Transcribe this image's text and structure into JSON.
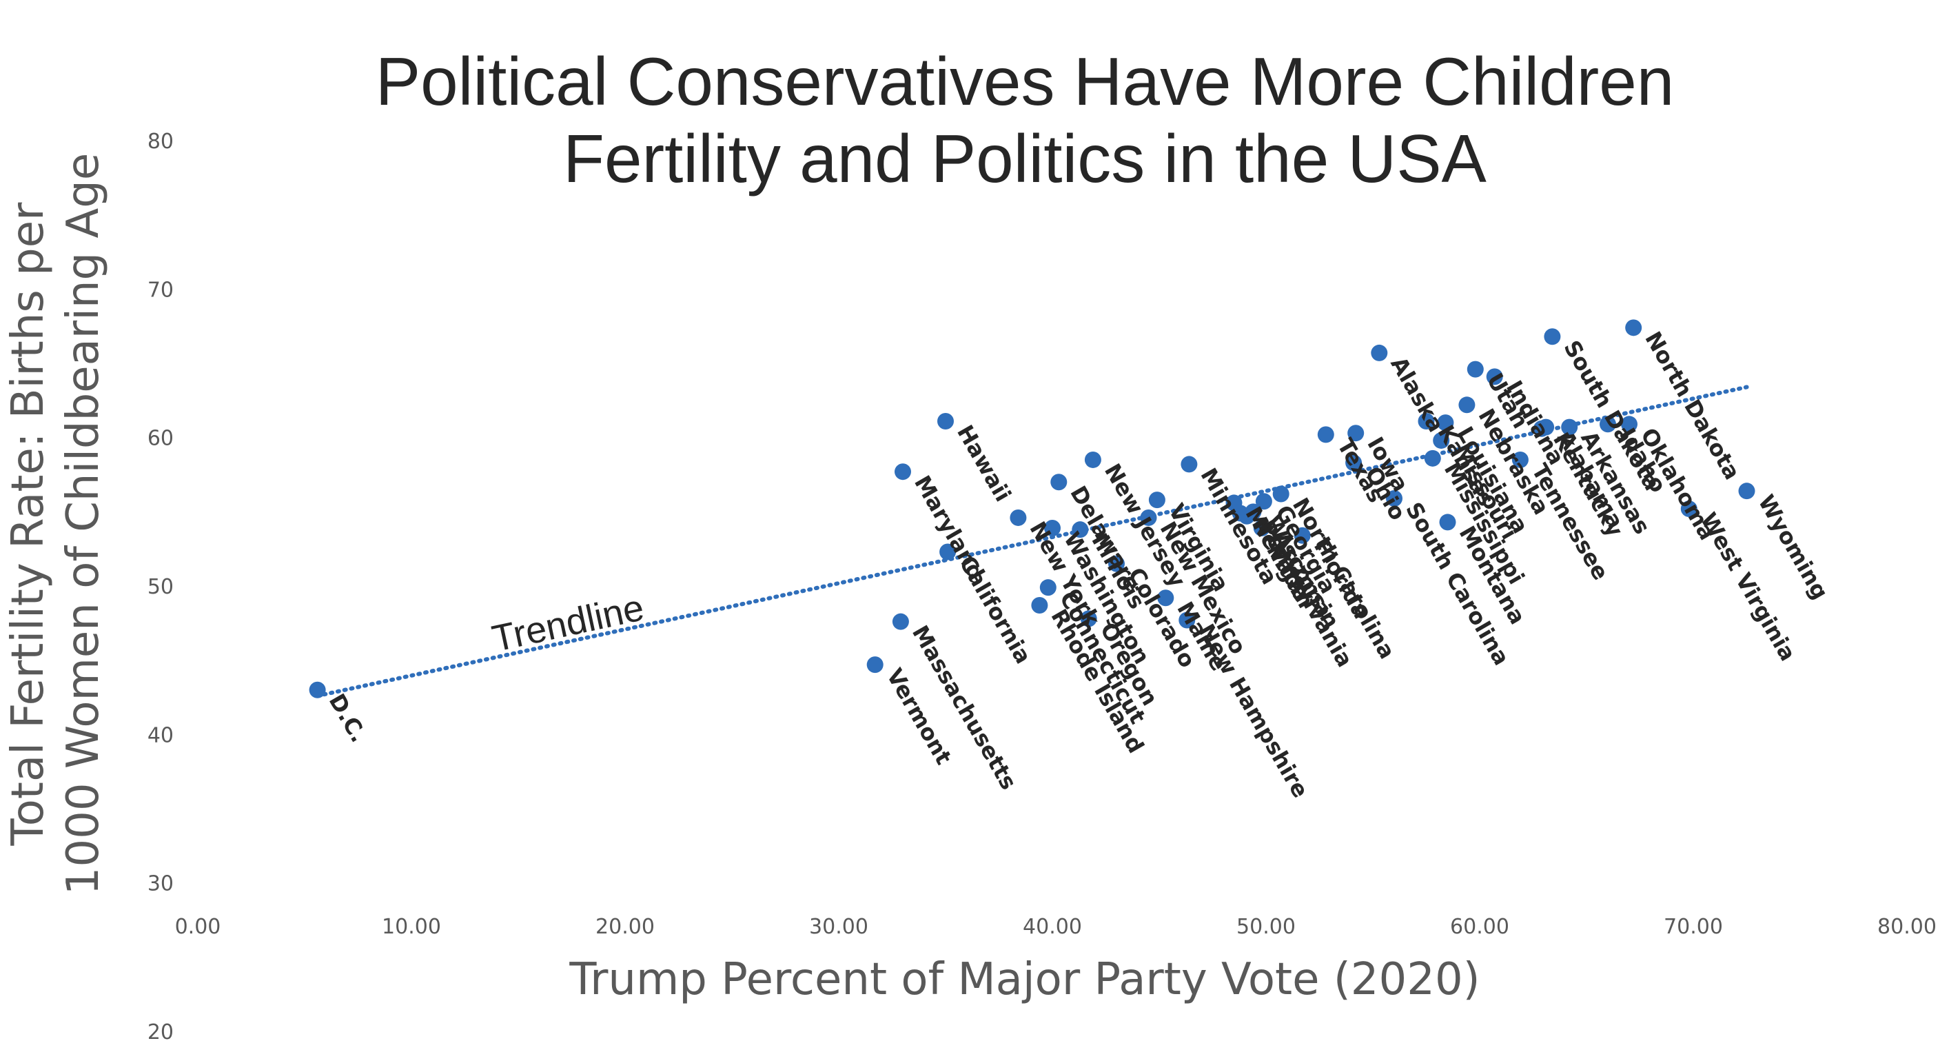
{
  "chart_data": {
    "type": "scatter",
    "title": [
      "Political Conservatives Have More Children",
      "Fertility and Politics in the USA"
    ],
    "xlabel": "Trump Percent of Major Party Vote (2020)",
    "ylabel": [
      "Total Fertility Rate: Births per",
      "1000 Women of Childbearing Age"
    ],
    "xlim": [
      0,
      80
    ],
    "ylim": [
      20,
      80
    ],
    "x_ticks": [
      "0.00",
      "10.00",
      "20.00",
      "30.00",
      "40.00",
      "50.00",
      "60.00",
      "70.00",
      "80.00"
    ],
    "y_ticks": [
      "20",
      "30",
      "40",
      "50",
      "60",
      "70",
      "80"
    ],
    "grid": false,
    "legend": "none",
    "point_color": "#2f6eba",
    "trendline": {
      "label": "Trendline",
      "style": "dotted",
      "from": [
        5.6,
        42.6
      ],
      "to": [
        72.5,
        63.4
      ]
    },
    "points": [
      {
        "label": "D.C.",
        "x": 5.6,
        "y": 43.0
      },
      {
        "label": "Vermont",
        "x": 31.7,
        "y": 44.7
      },
      {
        "label": "Massachusetts",
        "x": 32.9,
        "y": 47.6
      },
      {
        "label": "Maryland",
        "x": 33.0,
        "y": 57.7
      },
      {
        "label": "Hawaii",
        "x": 35.0,
        "y": 61.1
      },
      {
        "label": "California",
        "x": 35.1,
        "y": 52.3
      },
      {
        "label": "New York",
        "x": 38.4,
        "y": 54.6
      },
      {
        "label": "Rhode Island",
        "x": 39.4,
        "y": 48.7
      },
      {
        "label": "Connecticut",
        "x": 39.8,
        "y": 49.9
      },
      {
        "label": "Washington",
        "x": 40.0,
        "y": 53.9
      },
      {
        "label": "Delaware",
        "x": 40.3,
        "y": 57.0
      },
      {
        "label": "Illinois",
        "x": 41.3,
        "y": 53.8
      },
      {
        "label": "Oregon",
        "x": 41.7,
        "y": 47.8
      },
      {
        "label": "New Jersey",
        "x": 41.9,
        "y": 58.5
      },
      {
        "label": "Colorado",
        "x": 43.0,
        "y": 51.5
      },
      {
        "label": "New Mexico",
        "x": 44.5,
        "y": 54.6
      },
      {
        "label": "Virginia",
        "x": 44.9,
        "y": 55.8
      },
      {
        "label": "Maine",
        "x": 45.3,
        "y": 49.2
      },
      {
        "label": "New Hampshire",
        "x": 46.3,
        "y": 47.7
      },
      {
        "label": "Minnesota",
        "x": 46.4,
        "y": 58.2
      },
      {
        "label": "Michigan",
        "x": 48.5,
        "y": 55.6
      },
      {
        "label": "Nevada",
        "x": 48.8,
        "y": 54.9
      },
      {
        "label": "Pennsylvania",
        "x": 49.1,
        "y": 54.7
      },
      {
        "label": "Wisconsin",
        "x": 49.4,
        "y": 55.0
      },
      {
        "label": "Arizona",
        "x": 49.8,
        "y": 53.9
      },
      {
        "label": "Georgia",
        "x": 49.9,
        "y": 55.7
      },
      {
        "label": "North Carolina",
        "x": 50.7,
        "y": 56.2
      },
      {
        "label": "Florida",
        "x": 51.7,
        "y": 53.4
      },
      {
        "label": "Texas",
        "x": 52.8,
        "y": 60.2
      },
      {
        "label": "Ohio",
        "x": 54.1,
        "y": 58.3
      },
      {
        "label": "Iowa",
        "x": 54.2,
        "y": 60.3
      },
      {
        "label": "Alaska",
        "x": 55.3,
        "y": 65.7
      },
      {
        "label": "South Carolina",
        "x": 56.0,
        "y": 55.9
      },
      {
        "label": "Kansas",
        "x": 57.5,
        "y": 61.1
      },
      {
        "label": "Mississippi",
        "x": 57.8,
        "y": 58.6
      },
      {
        "label": "Missouri",
        "x": 58.2,
        "y": 59.8
      },
      {
        "label": "Louisiana",
        "x": 58.4,
        "y": 61.0
      },
      {
        "label": "Montana",
        "x": 58.5,
        "y": 54.3
      },
      {
        "label": "Nebraska",
        "x": 59.4,
        "y": 62.2
      },
      {
        "label": "Utah",
        "x": 59.8,
        "y": 64.6
      },
      {
        "label": "Indiana",
        "x": 60.7,
        "y": 64.1
      },
      {
        "label": "Tennessee",
        "x": 61.9,
        "y": 58.5
      },
      {
        "label": "Kentucky",
        "x": 62.9,
        "y": 60.6
      },
      {
        "label": "Alabama",
        "x": 63.1,
        "y": 60.7
      },
      {
        "label": "South Dakota",
        "x": 63.4,
        "y": 66.8
      },
      {
        "label": "Arkansas",
        "x": 64.2,
        "y": 60.7
      },
      {
        "label": "Idaho",
        "x": 66.0,
        "y": 60.9
      },
      {
        "label": "Oklahoma",
        "x": 67.0,
        "y": 60.9
      },
      {
        "label": "North Dakota",
        "x": 67.2,
        "y": 67.4
      },
      {
        "label": "West Virginia",
        "x": 69.8,
        "y": 55.2
      },
      {
        "label": "Wyoming",
        "x": 72.5,
        "y": 56.4
      }
    ]
  }
}
